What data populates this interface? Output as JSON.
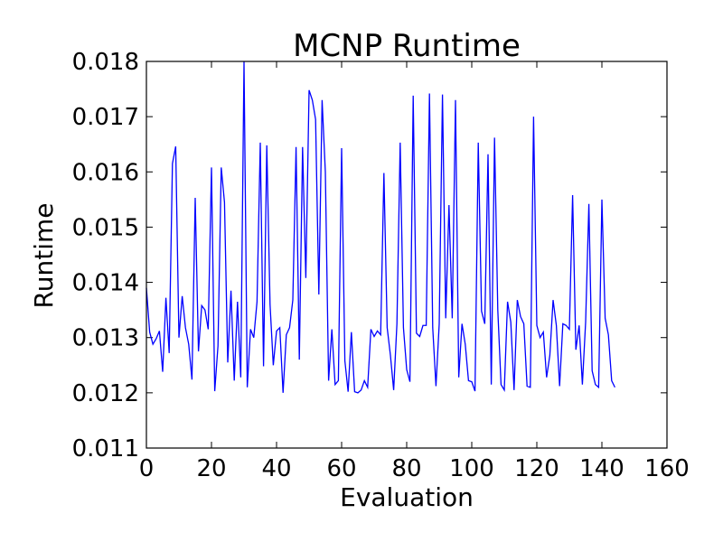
{
  "chart_data": {
    "type": "line",
    "title": "MCNP Runtime",
    "xlabel": "Evaluation",
    "ylabel": "Runtime",
    "xlim": [
      0,
      160
    ],
    "ylim": [
      0.011,
      0.018
    ],
    "xticks": [
      "0",
      "20",
      "40",
      "60",
      "80",
      "100",
      "120",
      "140",
      "160"
    ],
    "yticks": [
      "0.011",
      "0.012",
      "0.013",
      "0.014",
      "0.015",
      "0.016",
      "0.017",
      "0.018"
    ],
    "grid": false,
    "line_color": "#0000ff",
    "series": [
      {
        "values": [
          0.0139,
          0.0131,
          0.01288,
          0.01298,
          0.01312,
          0.01238,
          0.01372,
          0.01272,
          0.01615,
          0.01646,
          0.013,
          0.01375,
          0.01318,
          0.01288,
          0.01224,
          0.01553,
          0.01275,
          0.01358,
          0.0135,
          0.01315,
          0.01608,
          0.01203,
          0.01285,
          0.01608,
          0.01545,
          0.01255,
          0.01385,
          0.01222,
          0.01365,
          0.01228,
          0.018,
          0.0121,
          0.01315,
          0.013,
          0.01365,
          0.01653,
          0.01248,
          0.01648,
          0.0136,
          0.0125,
          0.01312,
          0.01318,
          0.012,
          0.01305,
          0.01318,
          0.01368,
          0.01645,
          0.0126,
          0.01645,
          0.01408,
          0.01748,
          0.0173,
          0.01695,
          0.01378,
          0.0173,
          0.016,
          0.01222,
          0.01315,
          0.01215,
          0.01222,
          0.01643,
          0.01258,
          0.01202,
          0.0131,
          0.01202,
          0.012,
          0.01205,
          0.01222,
          0.0121,
          0.01315,
          0.01302,
          0.01312,
          0.01305,
          0.01598,
          0.01318,
          0.01268,
          0.01205,
          0.01325,
          0.01653,
          0.01318,
          0.01242,
          0.0122,
          0.01738,
          0.01308,
          0.01302,
          0.01322,
          0.01322,
          0.01742,
          0.01318,
          0.01212,
          0.01325,
          0.0174,
          0.01335,
          0.0154,
          0.01335,
          0.0173,
          0.01228,
          0.01325,
          0.01288,
          0.01222,
          0.0122,
          0.01203,
          0.01653,
          0.01348,
          0.01325,
          0.01632,
          0.01215,
          0.01662,
          0.0135,
          0.01215,
          0.01205,
          0.01365,
          0.01328,
          0.01205,
          0.01368,
          0.01338,
          0.01325,
          0.01212,
          0.0121,
          0.017,
          0.01322,
          0.013,
          0.0131,
          0.01228,
          0.01268,
          0.01368,
          0.01322,
          0.01212,
          0.01325,
          0.01322,
          0.01315,
          0.01558,
          0.01278,
          0.01322,
          0.01215,
          0.01328,
          0.01542,
          0.0124,
          0.01215,
          0.0121,
          0.0155,
          0.01335,
          0.01305,
          0.01222,
          0.0121
        ]
      }
    ]
  }
}
